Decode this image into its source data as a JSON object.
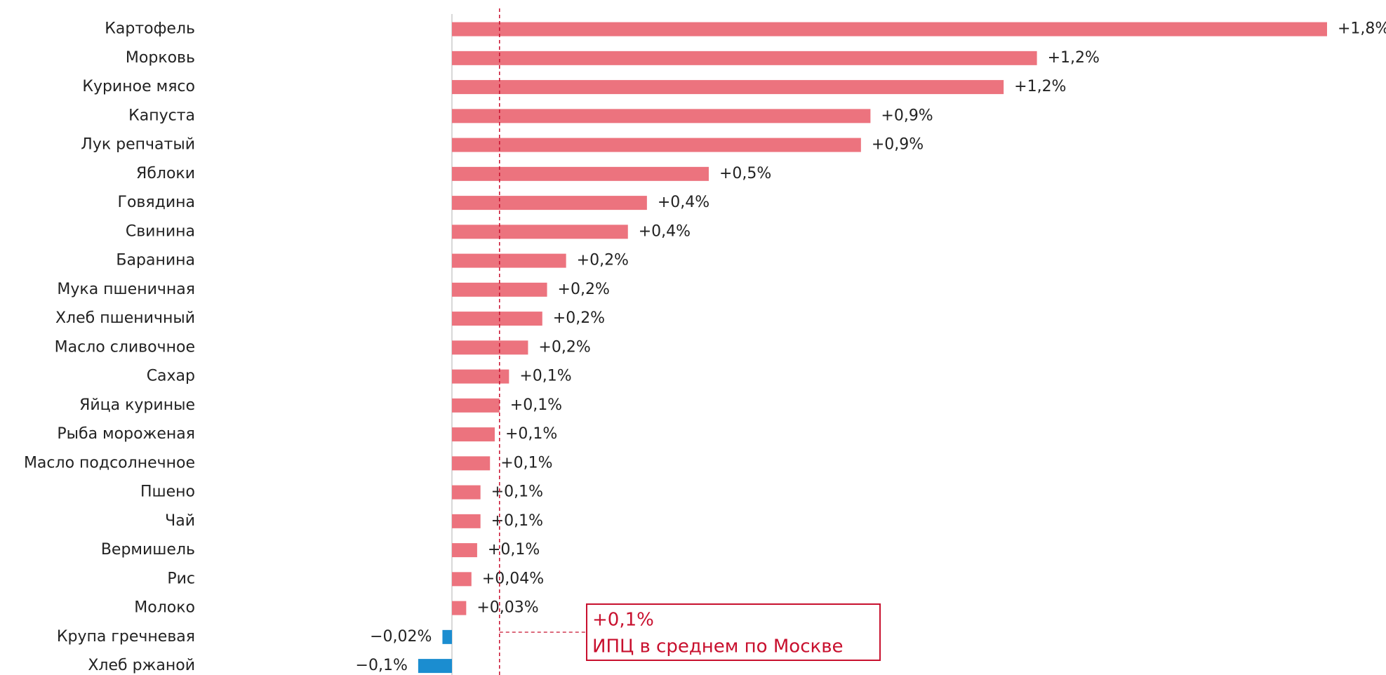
{
  "chart_data": {
    "type": "bar",
    "orientation": "horizontal",
    "categories": [
      "Картофель",
      "Морковь",
      "Куриное мясо",
      "Капуста",
      "Лук репчатый",
      "Яблоки",
      "Говядина",
      "Свинина",
      "Баранина",
      "Мука пшеничная",
      "Хлеб пшеничный",
      "Масло сливочное",
      "Сахар",
      "Яйца куриные",
      "Рыба мороженая",
      "Масло подсолнечное",
      "Пшено",
      "Чай",
      "Вермишель",
      "Рис",
      "Молоко",
      "Крупа гречневая",
      "Хлеб ржаной"
    ],
    "values": [
      1.84,
      1.23,
      1.16,
      0.88,
      0.86,
      0.54,
      0.41,
      0.37,
      0.24,
      0.2,
      0.19,
      0.16,
      0.12,
      0.1,
      0.09,
      0.08,
      0.06,
      0.06,
      0.053,
      0.041,
      0.03,
      -0.02,
      -0.071
    ],
    "value_labels": [
      "+1,8%",
      "+1,2%",
      "+1,2%",
      "+0,9%",
      "+0,9%",
      "+0,5%",
      "+0,4%",
      "+0,4%",
      "+0,2%",
      "+0,2%",
      "+0,2%",
      "+0,2%",
      "+0,1%",
      "+0,1%",
      "+0,1%",
      "+0,1%",
      "+0,1%",
      "+0,1%",
      "+0,1%",
      "+0,04%",
      "+0,03%",
      "−0,02%",
      "−0,1%"
    ],
    "positive_color": "#ec737e",
    "negative_color": "#1b8dd0",
    "annotation": {
      "value": 0.1,
      "label": "+0,1%",
      "text": "ИПЦ в среднем по Москве",
      "color": "#c8102e"
    }
  }
}
